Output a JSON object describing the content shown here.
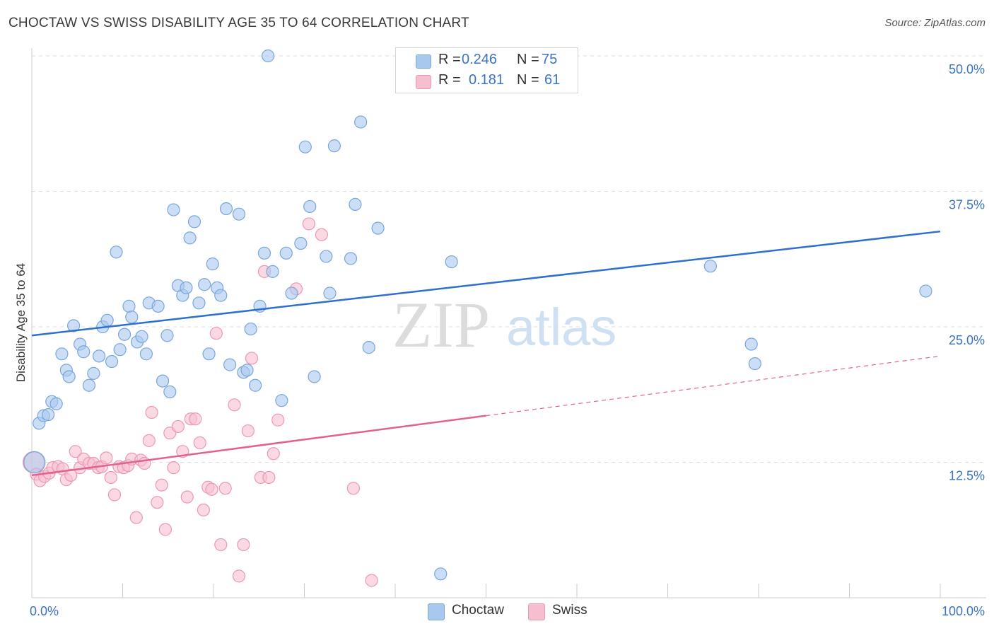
{
  "header": {
    "title": "CHOCTAW VS SWISS DISABILITY AGE 35 TO 64 CORRELATION CHART",
    "source": "Source: ZipAtlas.com"
  },
  "watermark": {
    "zip": "ZIP",
    "atlas": "atlas"
  },
  "legend": {
    "rows": [
      {
        "r_label": "R =",
        "r_value": "0.246",
        "n_label": "N =",
        "n_value": "75"
      },
      {
        "r_label": "R =",
        "r_value": "0.181",
        "n_label": "N =",
        "n_value": "61"
      }
    ]
  },
  "bottom_legend": {
    "series_a": "Choctaw",
    "series_b": "Swiss"
  },
  "colors": {
    "choctaw_fill": "#a9c8ee",
    "choctaw_stroke": "#7aa6db",
    "choctaw_line": "#2f6fcd",
    "swiss_fill": "#f6bfd0",
    "swiss_stroke": "#ec98b4",
    "swiss_line": "#e2628f",
    "tick_label": "#3b73c4",
    "grid": "#dddddd"
  },
  "chart_data": {
    "type": "scatter",
    "title": "CHOCTAW VS SWISS DISABILITY AGE 35 TO 64 CORRELATION CHART",
    "xlabel": "",
    "ylabel": "Disability Age 35 to 64",
    "xlim": [
      0,
      100
    ],
    "ylim": [
      0,
      50
    ],
    "x_tick_labels": [
      "0.0%",
      "100.0%"
    ],
    "y_ticks": [
      12.5,
      25.0,
      37.5,
      50.0
    ],
    "y_tick_labels": [
      "12.5%",
      "25.0%",
      "37.5%",
      "50.0%"
    ],
    "grid": true,
    "legend_position": "top-center",
    "series": [
      {
        "name": "Choctaw",
        "R": 0.246,
        "N": 75,
        "trend": {
          "x": [
            0,
            100
          ],
          "y": [
            24.2,
            33.8
          ],
          "dashed_from_x": null
        },
        "points": [
          [
            0.3,
            12.5
          ],
          [
            0.8,
            16.1
          ],
          [
            1.3,
            16.8
          ],
          [
            1.8,
            16.9
          ],
          [
            2.2,
            18.1
          ],
          [
            2.7,
            17.9
          ],
          [
            3.3,
            22.5
          ],
          [
            3.8,
            21.0
          ],
          [
            4.1,
            20.4
          ],
          [
            4.6,
            25.1
          ],
          [
            5.3,
            23.4
          ],
          [
            5.7,
            22.7
          ],
          [
            6.3,
            19.6
          ],
          [
            6.8,
            20.7
          ],
          [
            7.4,
            22.3
          ],
          [
            7.8,
            25.0
          ],
          [
            8.3,
            25.6
          ],
          [
            8.8,
            21.8
          ],
          [
            9.3,
            31.9
          ],
          [
            9.7,
            22.9
          ],
          [
            10.2,
            24.3
          ],
          [
            10.7,
            26.9
          ],
          [
            11.0,
            25.9
          ],
          [
            11.6,
            23.6
          ],
          [
            12.1,
            24.1
          ],
          [
            12.6,
            22.5
          ],
          [
            12.9,
            27.2
          ],
          [
            13.9,
            26.9
          ],
          [
            14.4,
            20.0
          ],
          [
            14.9,
            24.2
          ],
          [
            15.2,
            19.0
          ],
          [
            15.6,
            35.8
          ],
          [
            16.1,
            28.8
          ],
          [
            16.6,
            27.9
          ],
          [
            17.0,
            28.6
          ],
          [
            17.4,
            33.2
          ],
          [
            17.9,
            34.7
          ],
          [
            18.4,
            27.2
          ],
          [
            19.0,
            28.9
          ],
          [
            19.5,
            22.5
          ],
          [
            19.9,
            30.8
          ],
          [
            20.4,
            28.6
          ],
          [
            20.8,
            27.9
          ],
          [
            21.4,
            35.9
          ],
          [
            21.8,
            21.5
          ],
          [
            22.8,
            35.4
          ],
          [
            23.3,
            20.8
          ],
          [
            23.7,
            21.0
          ],
          [
            24.1,
            24.8
          ],
          [
            24.6,
            19.6
          ],
          [
            25.1,
            26.9
          ],
          [
            25.6,
            31.8
          ],
          [
            26.5,
            30.1
          ],
          [
            27.5,
            18.2
          ],
          [
            28.0,
            31.8
          ],
          [
            28.6,
            28.1
          ],
          [
            29.6,
            32.7
          ],
          [
            30.1,
            41.6
          ],
          [
            30.6,
            36.1
          ],
          [
            31.1,
            20.4
          ],
          [
            32.4,
            31.5
          ],
          [
            32.8,
            28.1
          ],
          [
            33.3,
            41.7
          ],
          [
            35.1,
            31.3
          ],
          [
            35.6,
            36.3
          ],
          [
            36.2,
            43.9
          ],
          [
            37.1,
            23.1
          ],
          [
            38.1,
            34.1
          ],
          [
            45.0,
            2.2
          ],
          [
            46.2,
            31.0
          ],
          [
            74.7,
            30.6
          ],
          [
            79.2,
            23.4
          ],
          [
            79.6,
            21.6
          ],
          [
            98.4,
            28.3
          ],
          [
            26.0,
            50.0
          ]
        ]
      },
      {
        "name": "Swiss",
        "R": 0.181,
        "N": 61,
        "trend": {
          "x": [
            0,
            100
          ],
          "y": [
            11.3,
            22.3
          ],
          "dashed_from_x": 50
        },
        "points": [
          [
            0.2,
            12.5
          ],
          [
            0.5,
            11.4
          ],
          [
            0.9,
            10.8
          ],
          [
            1.4,
            11.2
          ],
          [
            1.9,
            11.5
          ],
          [
            2.3,
            12.0
          ],
          [
            2.9,
            12.1
          ],
          [
            3.4,
            11.9
          ],
          [
            3.8,
            10.9
          ],
          [
            4.3,
            11.3
          ],
          [
            4.8,
            13.5
          ],
          [
            5.3,
            12.0
          ],
          [
            5.7,
            12.8
          ],
          [
            6.3,
            12.4
          ],
          [
            6.8,
            12.4
          ],
          [
            7.3,
            12.0
          ],
          [
            7.7,
            12.1
          ],
          [
            8.2,
            12.9
          ],
          [
            8.7,
            11.1
          ],
          [
            9.1,
            9.5
          ],
          [
            9.6,
            12.1
          ],
          [
            10.1,
            12.0
          ],
          [
            10.6,
            12.2
          ],
          [
            11.0,
            12.8
          ],
          [
            11.5,
            7.4
          ],
          [
            12.0,
            12.7
          ],
          [
            12.4,
            12.4
          ],
          [
            12.9,
            14.5
          ],
          [
            13.2,
            17.1
          ],
          [
            13.8,
            8.8
          ],
          [
            14.3,
            10.4
          ],
          [
            14.7,
            6.3
          ],
          [
            15.2,
            15.2
          ],
          [
            15.6,
            12.0
          ],
          [
            16.1,
            15.8
          ],
          [
            16.6,
            13.5
          ],
          [
            17.1,
            9.3
          ],
          [
            17.5,
            16.5
          ],
          [
            18.0,
            16.5
          ],
          [
            18.5,
            14.3
          ],
          [
            18.9,
            8.1
          ],
          [
            19.4,
            10.2
          ],
          [
            19.8,
            10.0
          ],
          [
            20.3,
            24.4
          ],
          [
            20.8,
            4.9
          ],
          [
            21.3,
            10.1
          ],
          [
            22.3,
            17.8
          ],
          [
            22.8,
            2.0
          ],
          [
            23.3,
            4.9
          ],
          [
            23.8,
            15.4
          ],
          [
            24.2,
            22.1
          ],
          [
            25.2,
            11.1
          ],
          [
            25.6,
            30.1
          ],
          [
            26.1,
            11.1
          ],
          [
            26.6,
            13.3
          ],
          [
            27.1,
            16.4
          ],
          [
            29.1,
            28.5
          ],
          [
            30.5,
            34.5
          ],
          [
            31.9,
            33.5
          ],
          [
            35.4,
            10.1
          ],
          [
            37.4,
            1.6
          ]
        ]
      }
    ]
  }
}
